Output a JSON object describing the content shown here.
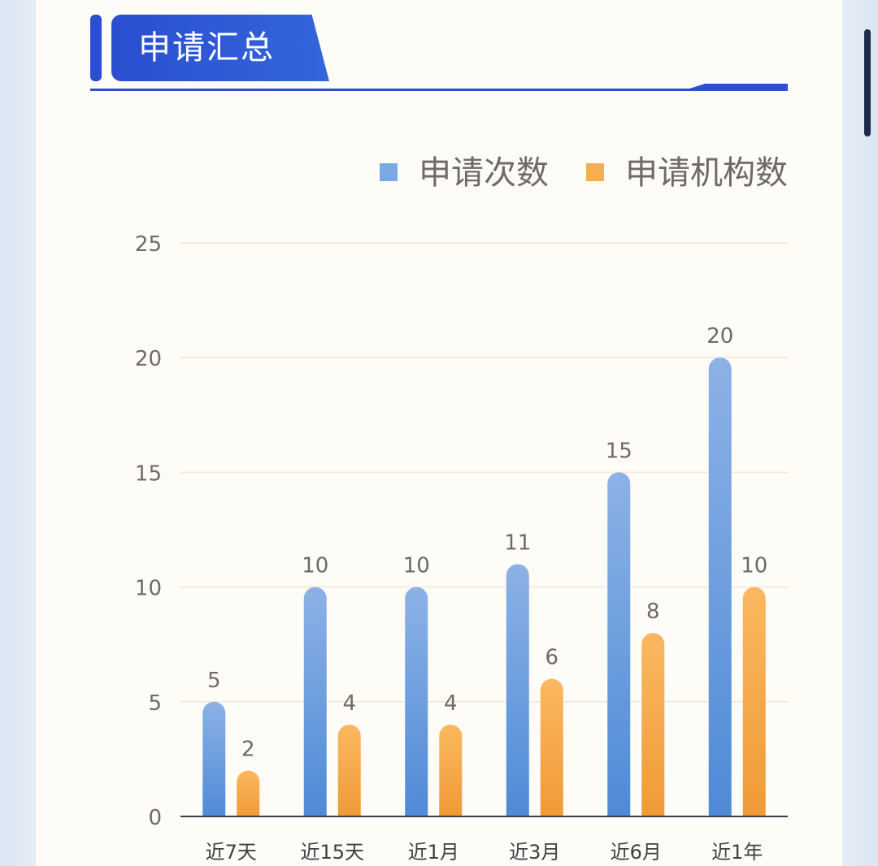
{
  "section": {
    "title": "申请汇总"
  },
  "colors": {
    "blue_series": "#7aa8e4",
    "orange_series": "#f5ae52",
    "accent": "#2a4fd1"
  },
  "chart_data": {
    "type": "bar",
    "title": "",
    "xlabel": "",
    "ylabel": "",
    "ylim": [
      0,
      25
    ],
    "yticks": [
      0,
      5,
      10,
      15,
      20,
      25
    ],
    "grid": true,
    "legend_position": "top-right",
    "categories": [
      "近7天",
      "近15天",
      "近1月",
      "近3月",
      "近6月",
      "近1年"
    ],
    "series": [
      {
        "name": "申请次数",
        "values": [
          5,
          10,
          10,
          11,
          15,
          20
        ]
      },
      {
        "name": "申请机构数",
        "values": [
          2,
          4,
          4,
          6,
          8,
          10
        ]
      }
    ]
  }
}
